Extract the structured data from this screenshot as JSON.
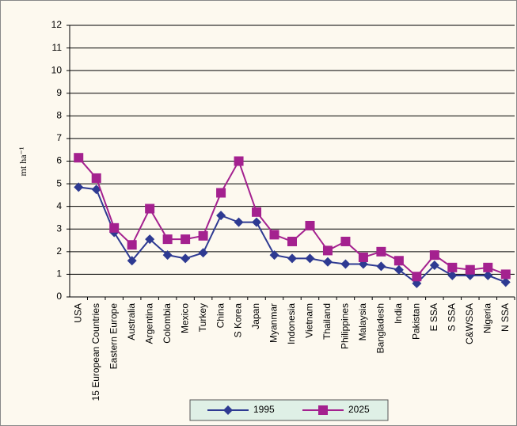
{
  "chart_data": {
    "type": "line",
    "y_label": "mt ha⁻¹",
    "categories": [
      "USA",
      "15 European Countries",
      "Eastern Europe",
      "Australia",
      "Argentina",
      "Colombia",
      "Mexico",
      "Turkey",
      "China",
      "S Korea",
      "Japan",
      "Myanmar",
      "Indonesia",
      "Vietnam",
      "Thailand",
      "Philippines",
      "Malaysia",
      "Bangladesh",
      "India",
      "Pakistan",
      "E SSA",
      "S SSA",
      "C&WSSA",
      "Nigeria",
      "N SSA"
    ],
    "series": [
      {
        "name": "1995",
        "color": "#2e3a92",
        "marker": "diamond",
        "values": [
          4.85,
          4.75,
          2.85,
          1.6,
          2.55,
          1.85,
          1.7,
          1.95,
          3.6,
          3.3,
          3.3,
          1.85,
          1.7,
          1.7,
          1.55,
          1.45,
          1.45,
          1.35,
          1.2,
          0.6,
          1.4,
          0.95,
          0.95,
          0.95,
          0.65
        ]
      },
      {
        "name": "2025",
        "color": "#a4218f",
        "marker": "square",
        "values": [
          6.15,
          5.25,
          3.05,
          2.3,
          3.9,
          2.55,
          2.55,
          2.7,
          4.6,
          6.0,
          3.75,
          2.75,
          2.45,
          3.15,
          2.05,
          2.45,
          1.75,
          2.0,
          1.6,
          0.9,
          1.85,
          1.3,
          1.2,
          1.3,
          1.0
        ]
      }
    ],
    "ylim": [
      0,
      12
    ],
    "yticks": [
      0,
      1,
      2,
      3,
      4,
      5,
      6,
      7,
      8,
      9,
      10,
      11,
      12
    ],
    "grid": true
  }
}
